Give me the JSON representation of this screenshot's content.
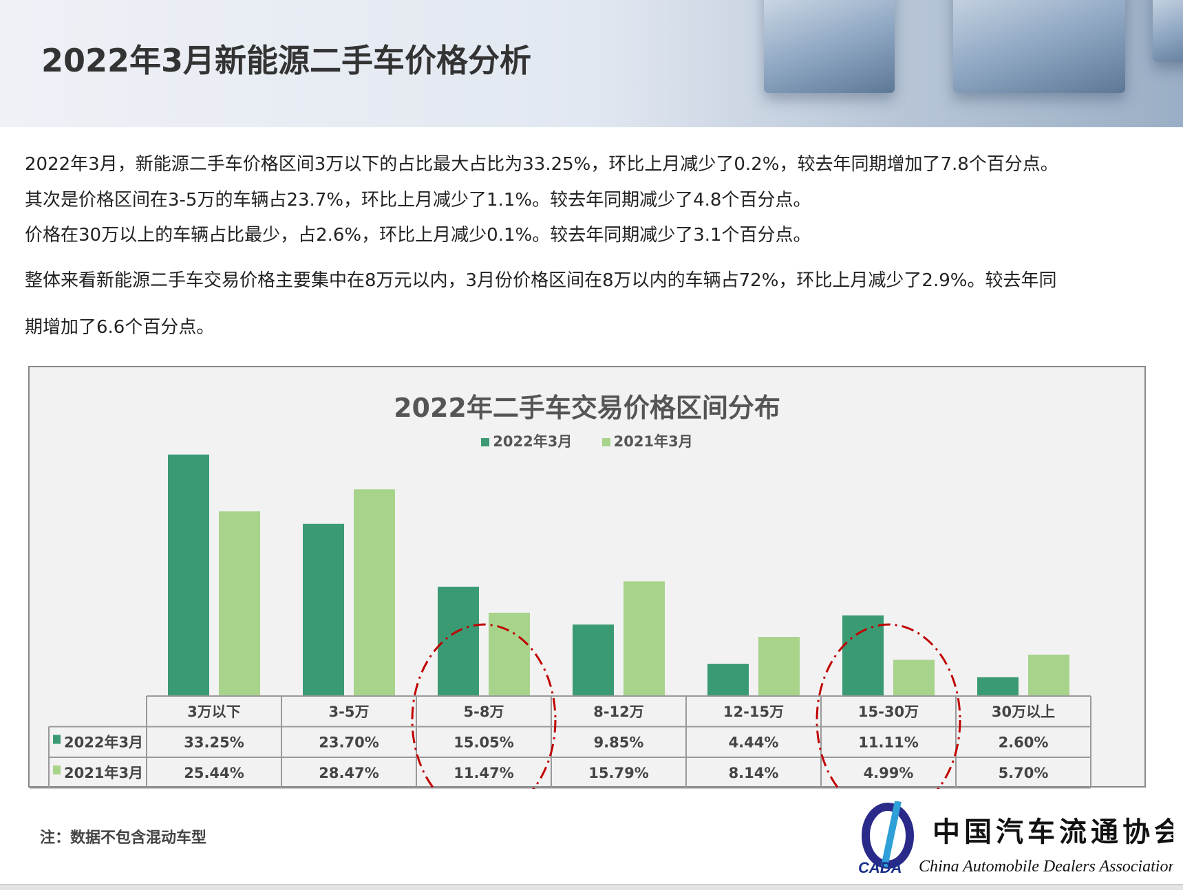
{
  "header": {
    "title": "2022年3月新能源二手车价格分析"
  },
  "paragraphs": [
    "2022年3月，新能源二手车价格区间3万以下的占比最大占比为33.25%，环比上月减少了0.2%，较去年同期增加了7.8个百分点。",
    "其次是价格区间在3-5万的车辆占23.7%，环比上月减少了1.1%。较去年同期减少了4.8个百分点。",
    "价格在30万以上的车辆占比最少，占2.6%，环比上月减少0.1%。较去年同期减少了3.1个百分点。",
    "整体来看新能源二手车交易价格主要集中在8万元以内，3月份价格区间在8万以内的车辆占72%，环比上月减少了2.9%。较去年同",
    "期增加了6.6个百分点。"
  ],
  "chart_data": {
    "type": "bar",
    "title": "2022年二手车交易价格区间分布",
    "categories": [
      "3万以下",
      "3-5万",
      "5-8万",
      "8-12万",
      "12-15万",
      "15-30万",
      "30万以上"
    ],
    "series": [
      {
        "name": "2022年3月",
        "color": "#3a9a74",
        "values": [
          33.25,
          23.7,
          15.05,
          9.85,
          4.44,
          11.11,
          2.6
        ],
        "labels": [
          "33.25%",
          "23.70%",
          "15.05%",
          "9.85%",
          "4.44%",
          "11.11%",
          "2.60%"
        ]
      },
      {
        "name": "2021年3月",
        "color": "#a8d38b",
        "values": [
          25.44,
          28.47,
          11.47,
          15.79,
          8.14,
          4.99,
          5.7
        ],
        "labels": [
          "25.44%",
          "28.47%",
          "11.47%",
          "15.79%",
          "8.14%",
          "4.99%",
          "5.70%"
        ]
      }
    ],
    "legend": "top",
    "data_table": true,
    "highlighted_categories": [
      "5-8万",
      "15-30万"
    ],
    "highlight_color": "#c00000"
  },
  "footnote": "注：数据不包含混动车型",
  "logo": {
    "abbr": "CADA",
    "cn": "中国汽车流通协会",
    "en": "China Automobile Dealers Association"
  }
}
